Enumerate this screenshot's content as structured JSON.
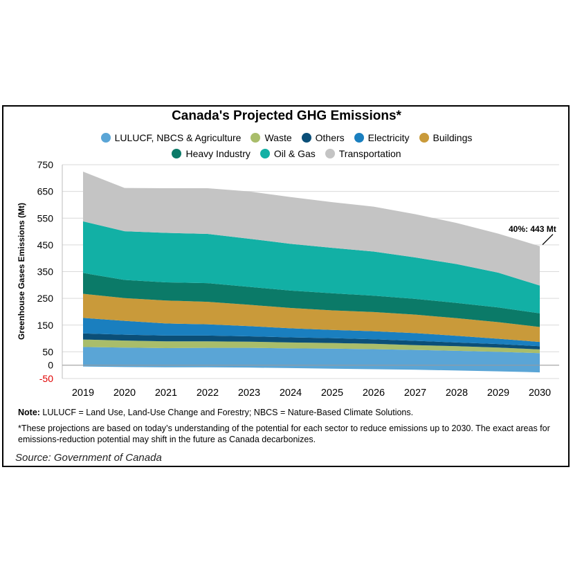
{
  "chart_data": {
    "type": "area",
    "title": "Canada's Projected GHG Emissions*",
    "ylabel": "Greenhouse Gases Emissions (Mt)",
    "xlabel": "",
    "x": [
      "2019",
      "2020",
      "2021",
      "2022",
      "2023",
      "2024",
      "2025",
      "2026",
      "2027",
      "2028",
      "2029",
      "2030"
    ],
    "ylim": [
      -50,
      750
    ],
    "yticks": [
      {
        "value": 750,
        "label": "750"
      },
      {
        "value": 650,
        "label": "650"
      },
      {
        "value": 550,
        "label": "550"
      },
      {
        "value": 450,
        "label": "450"
      },
      {
        "value": 350,
        "label": "350"
      },
      {
        "value": 250,
        "label": "250"
      },
      {
        "value": 150,
        "label": "150"
      },
      {
        "value": 50,
        "label": "50"
      },
      {
        "value": 0,
        "label": "0"
      },
      {
        "value": -50,
        "label": "-50",
        "color": "#e00000"
      }
    ],
    "grid": true,
    "legend_position": "top",
    "lulucf_negative": [
      -5,
      -7,
      -8,
      -8,
      -9,
      -11,
      -13,
      -15,
      -17,
      -20,
      -23,
      -27
    ],
    "series": [
      {
        "name": "LULUCF, NBCS & Agriculture",
        "color": "#5aa5d6",
        "values": [
          68,
          66,
          64,
          65,
          65,
          63,
          62,
          60,
          57,
          54,
          50,
          45
        ]
      },
      {
        "name": "Waste",
        "color": "#a9bd6a",
        "values": [
          28,
          26,
          25,
          24,
          23,
          22,
          21,
          20,
          18,
          17,
          16,
          14
        ]
      },
      {
        "name": "Others",
        "color": "#0b4f78",
        "values": [
          23,
          22,
          22,
          22,
          20,
          19,
          18,
          17,
          16,
          14,
          13,
          12
        ]
      },
      {
        "name": "Electricity",
        "color": "#1a7fbf",
        "values": [
          58,
          52,
          45,
          42,
          38,
          34,
          31,
          30,
          29,
          25,
          20,
          16
        ]
      },
      {
        "name": "Buildings",
        "color": "#c99a3a",
        "values": [
          90,
          85,
          86,
          84,
          80,
          76,
          73,
          72,
          69,
          66,
          62,
          56
        ]
      },
      {
        "name": "Heavy Industry",
        "color": "#0b7a68",
        "values": [
          78,
          68,
          68,
          70,
          67,
          65,
          64,
          61,
          59,
          57,
          55,
          51
        ]
      },
      {
        "name": "Oil & Gas",
        "color": "#12b0a5",
        "values": [
          193,
          182,
          185,
          184,
          180,
          175,
          170,
          165,
          155,
          145,
          130,
          104
        ]
      },
      {
        "name": "Transportation",
        "color": "#c4c4c4",
        "values": [
          186,
          162,
          167,
          171,
          177,
          175,
          171,
          168,
          162,
          154,
          146,
          147
        ]
      }
    ],
    "annotation": {
      "text": "40%: 443 Mt",
      "x": "2030",
      "value": 443
    }
  },
  "legend": {
    "row1": [
      "LULUCF, NBCS & Agriculture",
      "Waste",
      "Others",
      "Electricity",
      "Buildings"
    ],
    "row2": [
      "Heavy Industry",
      "Oil & Gas",
      "Transportation"
    ]
  },
  "notes": {
    "note_label": "Note:",
    "note_text": " LULUCF = Land Use, Land-Use Change and Forestry; NBCS = Nature-Based Climate Solutions.",
    "footnote": "*These projections are based on today’s understanding of the potential for each sector to reduce emissions up to 2030. The exact areas for emissions-reduction potential may shift in the future as Canada decarbonizes.",
    "source": "Source: Government of Canada"
  }
}
